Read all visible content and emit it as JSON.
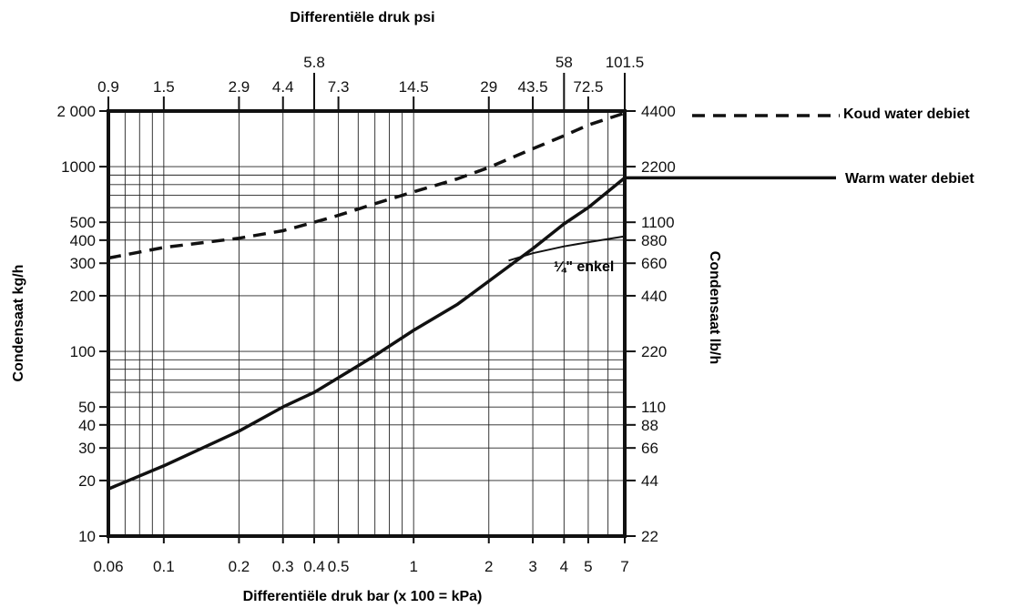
{
  "chart_data": {
    "type": "line",
    "title": "Differentiële druk psi",
    "xlabel": "Differentiële druk bar (x 100 = kPa)",
    "ylabel": "Condensaat kg/h",
    "y2label": "Condensaat lb/h",
    "xscale": "log",
    "yscale": "log",
    "xlim": [
      0.06,
      7
    ],
    "ylim": [
      10,
      2000
    ],
    "grid": true,
    "x_ticks_bottom": [
      {
        "value": 0.06,
        "label": "0.06"
      },
      {
        "value": 0.1,
        "label": "0.1"
      },
      {
        "value": 0.2,
        "label": "0.2"
      },
      {
        "value": 0.3,
        "label": "0.3"
      },
      {
        "value": 0.4,
        "label": "0.4"
      },
      {
        "value": 0.5,
        "label": "0.5"
      },
      {
        "value": 1,
        "label": "1"
      },
      {
        "value": 2,
        "label": "2"
      },
      {
        "value": 3,
        "label": "3"
      },
      {
        "value": 4,
        "label": "4"
      },
      {
        "value": 5,
        "label": "5"
      },
      {
        "value": 7,
        "label": "7"
      }
    ],
    "x_ticks_top": [
      {
        "value": 0.06,
        "label": "0.9",
        "row": "lower"
      },
      {
        "value": 0.1,
        "label": "1.5",
        "row": "lower"
      },
      {
        "value": 0.2,
        "label": "2.9",
        "row": "lower"
      },
      {
        "value": 0.3,
        "label": "4.4",
        "row": "lower"
      },
      {
        "value": 0.4,
        "label": "5.8",
        "row": "upper"
      },
      {
        "value": 0.5,
        "label": "7.3",
        "row": "lower"
      },
      {
        "value": 1,
        "label": "14.5",
        "row": "lower"
      },
      {
        "value": 2,
        "label": "29",
        "row": "lower"
      },
      {
        "value": 3,
        "label": "43.5",
        "row": "lower"
      },
      {
        "value": 4,
        "label": "58",
        "row": "upper"
      },
      {
        "value": 5,
        "label": "72.5",
        "row": "lower"
      },
      {
        "value": 7,
        "label": "101.5",
        "row": "upper"
      }
    ],
    "y_ticks_left": [
      {
        "value": 10,
        "label": "10"
      },
      {
        "value": 20,
        "label": "20"
      },
      {
        "value": 30,
        "label": "30"
      },
      {
        "value": 40,
        "label": "40"
      },
      {
        "value": 50,
        "label": "50"
      },
      {
        "value": 100,
        "label": "100"
      },
      {
        "value": 200,
        "label": "200"
      },
      {
        "value": 300,
        "label": "300"
      },
      {
        "value": 400,
        "label": "400"
      },
      {
        "value": 500,
        "label": "500"
      },
      {
        "value": 1000,
        "label": "1000"
      },
      {
        "value": 2000,
        "label": "2 000"
      }
    ],
    "y_ticks_right": [
      {
        "value": 10,
        "label": "22"
      },
      {
        "value": 20,
        "label": "44"
      },
      {
        "value": 30,
        "label": "66"
      },
      {
        "value": 40,
        "label": "88"
      },
      {
        "value": 50,
        "label": "110"
      },
      {
        "value": 100,
        "label": "220"
      },
      {
        "value": 200,
        "label": "440"
      },
      {
        "value": 300,
        "label": "660"
      },
      {
        "value": 400,
        "label": "880"
      },
      {
        "value": 500,
        "label": "1100"
      },
      {
        "value": 1000,
        "label": "2200"
      },
      {
        "value": 2000,
        "label": "4400"
      }
    ],
    "series": [
      {
        "name": "Koud water debiet",
        "style": "dashed",
        "points": [
          [
            0.06,
            320
          ],
          [
            0.1,
            365
          ],
          [
            0.2,
            410
          ],
          [
            0.3,
            450
          ],
          [
            0.4,
            500
          ],
          [
            0.5,
            545
          ],
          [
            0.7,
            630
          ],
          [
            1,
            730
          ],
          [
            1.5,
            860
          ],
          [
            2,
            990
          ],
          [
            3,
            1250
          ],
          [
            4,
            1470
          ],
          [
            5,
            1680
          ],
          [
            7,
            1950
          ]
        ]
      },
      {
        "name": "Warm water debiet",
        "style": "solid",
        "points": [
          [
            0.06,
            18
          ],
          [
            0.1,
            24
          ],
          [
            0.2,
            37
          ],
          [
            0.3,
            50
          ],
          [
            0.4,
            60
          ],
          [
            0.5,
            72
          ],
          [
            0.7,
            95
          ],
          [
            1,
            130
          ],
          [
            1.5,
            180
          ],
          [
            2,
            240
          ],
          [
            3,
            360
          ],
          [
            4,
            490
          ],
          [
            5,
            600
          ],
          [
            7,
            870
          ]
        ]
      },
      {
        "name": "¼\" enkel",
        "style": "thin",
        "points": [
          [
            2.4,
            310
          ],
          [
            3,
            340
          ],
          [
            4,
            370
          ],
          [
            5,
            390
          ],
          [
            7,
            420
          ]
        ]
      }
    ],
    "legend_labels": {
      "cold": "Koud water debiet",
      "warm": "Warm water debiet",
      "quarter": "¼\" enkel"
    },
    "colors": {
      "line": "#111111",
      "background": "#ffffff"
    }
  }
}
